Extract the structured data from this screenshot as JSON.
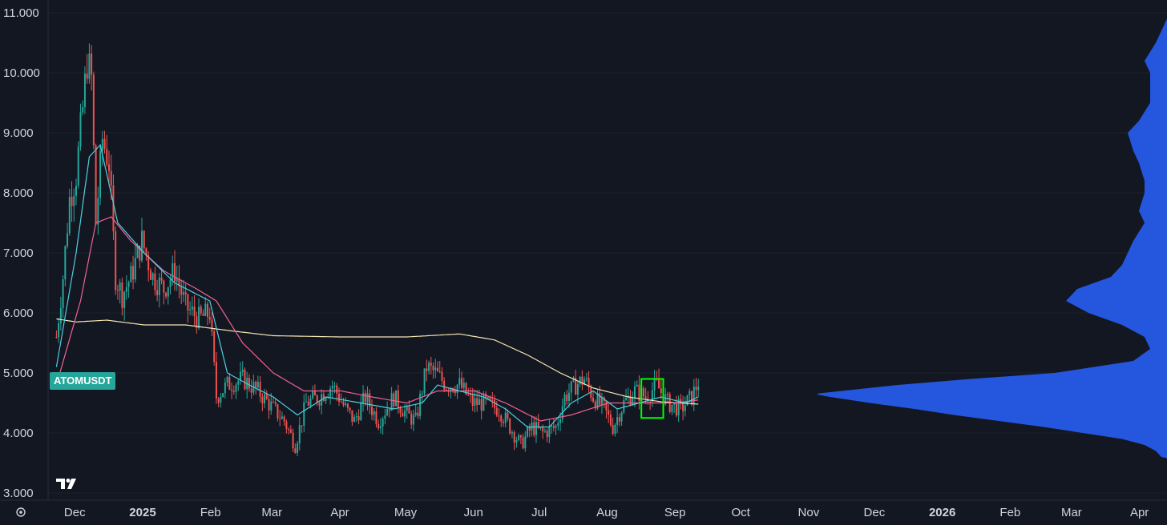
{
  "symbol": "ATOMUSDT",
  "colors": {
    "background": "#131722",
    "up": "#26a69a",
    "down": "#ef5350",
    "ma_fast": "#4dd0e1",
    "ma_mid": "#f06292",
    "ma_slow": "#f5e6b3",
    "volume_profile": "#2962ff",
    "highlight_box": "#00ff00"
  },
  "icons": {
    "settings": "settings-icon",
    "logo": "tradingview-logo"
  },
  "chart_data": {
    "type": "candlestick",
    "title": "",
    "ylim": [
      3.0,
      11.0
    ],
    "y_ticks": [
      "3.000",
      "4.000",
      "5.000",
      "6.000",
      "7.000",
      "8.000",
      "9.000",
      "10.000",
      "11.000"
    ],
    "x_ticks": [
      "Dec",
      "2025",
      "Feb",
      "Mar",
      "Apr",
      "May",
      "Jun",
      "Jul",
      "Aug",
      "Sep",
      "Oct",
      "Nov",
      "Dec",
      "2026",
      "Feb",
      "Mar",
      "Apr"
    ],
    "close_keypoints": [
      [
        "2024-11-22",
        5.6
      ],
      [
        "2024-11-25",
        6.6
      ],
      [
        "2024-11-28",
        7.9
      ],
      [
        "2024-12-01",
        8.3
      ],
      [
        "2024-12-04",
        9.4
      ],
      [
        "2024-12-06",
        10.2
      ],
      [
        "2024-12-08",
        9.9
      ],
      [
        "2024-12-10",
        7.5
      ],
      [
        "2024-12-13",
        8.9
      ],
      [
        "2024-12-16",
        8.5
      ],
      [
        "2024-12-19",
        6.6
      ],
      [
        "2024-12-22",
        6.3
      ],
      [
        "2024-12-26",
        6.6
      ],
      [
        "2024-12-31",
        7.2
      ],
      [
        "2025-01-05",
        6.6
      ],
      [
        "2025-01-10",
        6.4
      ],
      [
        "2025-01-15",
        6.7
      ],
      [
        "2025-01-20",
        6.1
      ],
      [
        "2025-01-26",
        5.9
      ],
      [
        "2025-01-31",
        6.0
      ],
      [
        "2025-02-03",
        4.6
      ],
      [
        "2025-02-08",
        4.8
      ],
      [
        "2025-02-15",
        4.9
      ],
      [
        "2025-02-22",
        4.7
      ],
      [
        "2025-03-01",
        4.4
      ],
      [
        "2025-03-06",
        4.2
      ],
      [
        "2025-03-11",
        3.8
      ],
      [
        "2025-03-16",
        4.5
      ],
      [
        "2025-03-22",
        4.6
      ],
      [
        "2025-03-28",
        4.8
      ],
      [
        "2025-04-03",
        4.4
      ],
      [
        "2025-04-07",
        4.2
      ],
      [
        "2025-04-12",
        4.6
      ],
      [
        "2025-04-18",
        4.2
      ],
      [
        "2025-04-25",
        4.6
      ],
      [
        "2025-05-01",
        4.3
      ],
      [
        "2025-05-05",
        4.2
      ],
      [
        "2025-05-10",
        5.1
      ],
      [
        "2025-05-14",
        5.0
      ],
      [
        "2025-05-19",
        4.8
      ],
      [
        "2025-05-25",
        4.8
      ],
      [
        "2025-05-31",
        4.5
      ],
      [
        "2025-06-05",
        4.5
      ],
      [
        "2025-06-12",
        4.4
      ],
      [
        "2025-06-17",
        4.1
      ],
      [
        "2025-06-22",
        3.8
      ],
      [
        "2025-06-27",
        4.1
      ],
      [
        "2025-07-02",
        4.0
      ],
      [
        "2025-07-08",
        4.1
      ],
      [
        "2025-07-12",
        4.6
      ],
      [
        "2025-07-17",
        4.8
      ],
      [
        "2025-07-21",
        4.9
      ],
      [
        "2025-07-25",
        4.6
      ],
      [
        "2025-07-30",
        4.4
      ],
      [
        "2025-08-03",
        4.1
      ],
      [
        "2025-08-08",
        4.5
      ],
      [
        "2025-08-13",
        4.7
      ],
      [
        "2025-08-18",
        4.6
      ],
      [
        "2025-08-23",
        4.8
      ],
      [
        "2025-08-28",
        4.5
      ],
      [
        "2025-09-03",
        4.4
      ],
      [
        "2025-09-08",
        4.6
      ],
      [
        "2025-09-11",
        4.85
      ]
    ],
    "ma_fast_keypoints": [
      [
        "2024-11-22",
        5.1
      ],
      [
        "2024-12-01",
        7.0
      ],
      [
        "2024-12-07",
        8.6
      ],
      [
        "2024-12-12",
        8.8
      ],
      [
        "2024-12-20",
        7.5
      ],
      [
        "2025-01-01",
        7.0
      ],
      [
        "2025-01-15",
        6.5
      ],
      [
        "2025-01-31",
        6.2
      ],
      [
        "2025-02-08",
        5.0
      ],
      [
        "2025-02-18",
        4.8
      ],
      [
        "2025-03-01",
        4.6
      ],
      [
        "2025-03-12",
        4.3
      ],
      [
        "2025-03-25",
        4.6
      ],
      [
        "2025-04-10",
        4.5
      ],
      [
        "2025-04-25",
        4.4
      ],
      [
        "2025-05-08",
        4.5
      ],
      [
        "2025-05-15",
        4.8
      ],
      [
        "2025-05-25",
        4.7
      ],
      [
        "2025-06-05",
        4.6
      ],
      [
        "2025-06-15",
        4.4
      ],
      [
        "2025-06-25",
        4.1
      ],
      [
        "2025-07-05",
        4.1
      ],
      [
        "2025-07-15",
        4.5
      ],
      [
        "2025-07-25",
        4.7
      ],
      [
        "2025-08-05",
        4.4
      ],
      [
        "2025-08-15",
        4.5
      ],
      [
        "2025-08-25",
        4.6
      ],
      [
        "2025-09-05",
        4.5
      ],
      [
        "2025-09-11",
        4.6
      ]
    ],
    "ma_mid_keypoints": [
      [
        "2024-11-22",
        4.8
      ],
      [
        "2024-12-03",
        6.2
      ],
      [
        "2024-12-10",
        7.5
      ],
      [
        "2024-12-17",
        7.6
      ],
      [
        "2024-12-26",
        7.2
      ],
      [
        "2025-01-10",
        6.7
      ],
      [
        "2025-01-25",
        6.4
      ],
      [
        "2025-02-03",
        6.2
      ],
      [
        "2025-02-15",
        5.5
      ],
      [
        "2025-03-01",
        5.0
      ],
      [
        "2025-03-15",
        4.7
      ],
      [
        "2025-04-01",
        4.7
      ],
      [
        "2025-04-15",
        4.6
      ],
      [
        "2025-05-01",
        4.5
      ],
      [
        "2025-05-15",
        4.7
      ],
      [
        "2025-06-01",
        4.7
      ],
      [
        "2025-06-15",
        4.5
      ],
      [
        "2025-07-01",
        4.2
      ],
      [
        "2025-07-15",
        4.3
      ],
      [
        "2025-08-01",
        4.5
      ],
      [
        "2025-08-15",
        4.5
      ],
      [
        "2025-09-01",
        4.5
      ],
      [
        "2025-09-11",
        4.55
      ]
    ],
    "ma_slow_keypoints": [
      [
        "2024-11-22",
        5.9
      ],
      [
        "2024-12-01",
        5.85
      ],
      [
        "2024-12-15",
        5.88
      ],
      [
        "2025-01-01",
        5.8
      ],
      [
        "2025-01-20",
        5.8
      ],
      [
        "2025-02-10",
        5.7
      ],
      [
        "2025-03-01",
        5.62
      ],
      [
        "2025-04-01",
        5.6
      ],
      [
        "2025-05-01",
        5.6
      ],
      [
        "2025-05-25",
        5.65
      ],
      [
        "2025-06-10",
        5.55
      ],
      [
        "2025-06-25",
        5.3
      ],
      [
        "2025-07-10",
        5.0
      ],
      [
        "2025-07-25",
        4.75
      ],
      [
        "2025-08-10",
        4.6
      ],
      [
        "2025-08-25",
        4.52
      ],
      [
        "2025-09-11",
        4.48
      ]
    ],
    "volume_profile": [
      [
        10.5,
        0.02
      ],
      [
        10.2,
        0.04
      ],
      [
        10.0,
        0.03
      ],
      [
        9.5,
        0.03
      ],
      [
        9.2,
        0.05
      ],
      [
        9.0,
        0.07
      ],
      [
        8.7,
        0.06
      ],
      [
        8.5,
        0.05
      ],
      [
        8.2,
        0.04
      ],
      [
        8.0,
        0.04
      ],
      [
        7.7,
        0.05
      ],
      [
        7.5,
        0.04
      ],
      [
        7.2,
        0.06
      ],
      [
        7.0,
        0.07
      ],
      [
        6.8,
        0.08
      ],
      [
        6.6,
        0.1
      ],
      [
        6.4,
        0.16
      ],
      [
        6.2,
        0.18
      ],
      [
        6.0,
        0.14
      ],
      [
        5.8,
        0.08
      ],
      [
        5.6,
        0.04
      ],
      [
        5.4,
        0.03
      ],
      [
        5.2,
        0.06
      ],
      [
        5.0,
        0.2
      ],
      [
        4.9,
        0.35
      ],
      [
        4.8,
        0.48
      ],
      [
        4.7,
        0.58
      ],
      [
        4.65,
        0.63
      ],
      [
        4.6,
        0.6
      ],
      [
        4.5,
        0.53
      ],
      [
        4.4,
        0.45
      ],
      [
        4.3,
        0.38
      ],
      [
        4.2,
        0.3
      ],
      [
        4.1,
        0.22
      ],
      [
        4.0,
        0.15
      ],
      [
        3.9,
        0.08
      ],
      [
        3.8,
        0.04
      ],
      [
        3.7,
        0.02
      ],
      [
        3.6,
        0.01
      ]
    ],
    "highlight_box": {
      "from": "2025-08-16",
      "to": "2025-08-26",
      "low": 4.25,
      "high": 4.9
    }
  }
}
